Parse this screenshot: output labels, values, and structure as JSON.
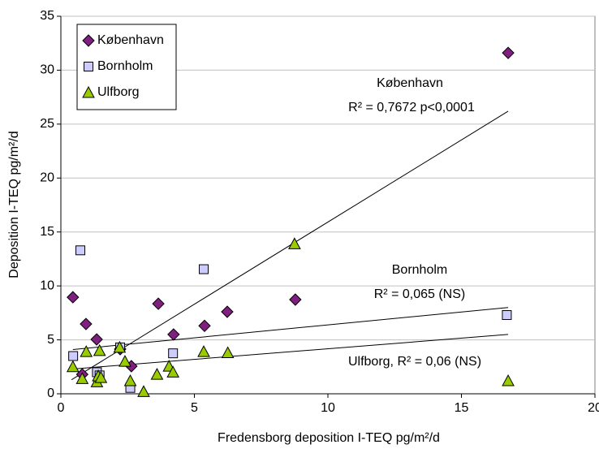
{
  "chart_data": {
    "type": "scatter",
    "xlabel": "Fredensborg deposition  I-TEQ  pg/m²/d",
    "ylabel": "Deposition  I-TEQ  pg/m²/d",
    "xlim": [
      0,
      20
    ],
    "xticks": [
      0,
      5,
      10,
      15,
      20
    ],
    "ylim": [
      0,
      35
    ],
    "yticks": [
      0,
      5,
      10,
      15,
      20,
      25,
      30,
      35
    ],
    "grid": true,
    "legend": "top-left",
    "series": [
      {
        "name": "København",
        "color": "#7f1f7f",
        "marker": "diamond",
        "x": [
          0.45,
          0.94,
          1.34,
          0.8,
          2.22,
          2.64,
          3.65,
          4.22,
          5.38,
          6.23,
          8.78,
          16.75
        ],
        "values": [
          8.95,
          6.47,
          5.04,
          1.8,
          4.14,
          2.56,
          8.35,
          5.5,
          6.3,
          7.6,
          8.73,
          31.6
        ]
      },
      {
        "name": "Bornholm",
        "color": "#ccccff",
        "marker": "square",
        "x": [
          0.73,
          0.46,
          1.35,
          1.45,
          2.22,
          2.6,
          4.2,
          5.35,
          16.7
        ],
        "values": [
          13.3,
          3.5,
          2.0,
          1.7,
          4.3,
          0.55,
          3.75,
          11.55,
          7.3
        ]
      },
      {
        "name": "Ulfborg",
        "color": "#99cc00",
        "marker": "triangle",
        "x": [
          0.45,
          0.8,
          0.95,
          1.35,
          1.4,
          1.5,
          1.45,
          2.2,
          2.4,
          2.6,
          3.1,
          3.6,
          4.05,
          4.2,
          5.35,
          6.25,
          8.75,
          16.75
        ],
        "values": [
          2.5,
          1.4,
          3.9,
          1.1,
          1.65,
          1.5,
          4.0,
          4.3,
          3.0,
          1.2,
          0.2,
          1.8,
          2.55,
          2.0,
          3.9,
          3.8,
          13.9,
          1.2
        ]
      }
    ],
    "trendlines": [
      {
        "x": [
          0.4,
          16.75
        ],
        "y": [
          1.3,
          26.2
        ]
      },
      {
        "x": [
          0.45,
          16.75
        ],
        "y": [
          4.1,
          8.0
        ]
      },
      {
        "x": [
          0.45,
          16.75
        ],
        "y": [
          2.3,
          5.5
        ]
      }
    ],
    "annotations": [
      "København",
      "R² = 0,7672  p<0,0001",
      "Bornholm",
      "R² = 0,065 (NS)",
      "Ulfborg, R² = 0,06 (NS)"
    ]
  }
}
